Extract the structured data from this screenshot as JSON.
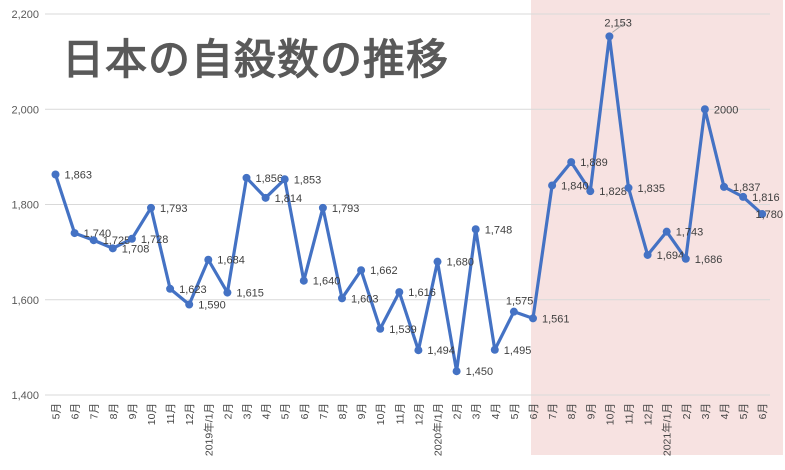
{
  "title": "日本の自殺数の推移",
  "colors": {
    "line": "#4472C4",
    "marker": "#4472C4",
    "highlight_region": "#F7E2E1",
    "gridline": "#D9D9D9",
    "leader_line": "#A6A6A6",
    "data_label_text": "#3F3F3F",
    "axis_text": "#595959",
    "title_text": "#595959"
  },
  "chart_data": {
    "type": "line",
    "title": "日本の自殺数の推移",
    "xlabel": "",
    "ylabel": "",
    "ylim": [
      1400,
      2200
    ],
    "grid": true,
    "legend_position": "none",
    "marker": "circle",
    "categories": [
      "5月",
      "6月",
      "7月",
      "8月",
      "9月",
      "10月",
      "11月",
      "12月",
      "2019年/1月",
      "2月",
      "3月",
      "4月",
      "5月",
      "6月",
      "7月",
      "8月",
      "9月",
      "10月",
      "11月",
      "12月",
      "2020年/1月",
      "2月",
      "3月",
      "4月",
      "5月",
      "6月",
      "7月",
      "8月",
      "9月",
      "10月",
      "11月",
      "12月",
      "2021年/1月",
      "2月",
      "3月",
      "4月",
      "5月",
      "6月"
    ],
    "values": [
      1863,
      1740,
      1725,
      1708,
      1728,
      1793,
      1623,
      1590,
      1684,
      1615,
      1856,
      1814,
      1853,
      1640,
      1793,
      1603,
      1662,
      1539,
      1616,
      1494,
      1680,
      1450,
      1748,
      1495,
      1575,
      1561,
      1840,
      1889,
      1828,
      2153,
      1835,
      1694,
      1743,
      1686,
      2000,
      1837,
      1816,
      1780
    ],
    "point_labels": [
      "1,863",
      "1,740",
      "1,725",
      "1,708",
      "1,728",
      "1,793",
      "1,623",
      "1,590",
      "1,684",
      "1,615",
      "1,856",
      "1,814",
      "1,853",
      "1,640",
      "1,793",
      "1,603",
      "1,662",
      "1,539",
      "1,616",
      "1,494",
      "1,680",
      "1,450",
      "1,748",
      "1,495",
      "1,575",
      "1,561",
      "1,840",
      "1,889",
      "1,828",
      "2,153",
      "1,835",
      "1,694",
      "1,743",
      "1,686",
      "2000",
      "1,837",
      "1,816",
      "1,780"
    ],
    "y_ticks": [
      {
        "label": "2,200",
        "value": 2200
      },
      {
        "label": "2,000",
        "value": 2000
      },
      {
        "label": "1,800",
        "value": 1800
      },
      {
        "label": "1,600",
        "value": 1600
      },
      {
        "label": "1,400",
        "value": 1400
      }
    ],
    "highlight_region": {
      "start_index": 25,
      "end_index": 37
    }
  }
}
